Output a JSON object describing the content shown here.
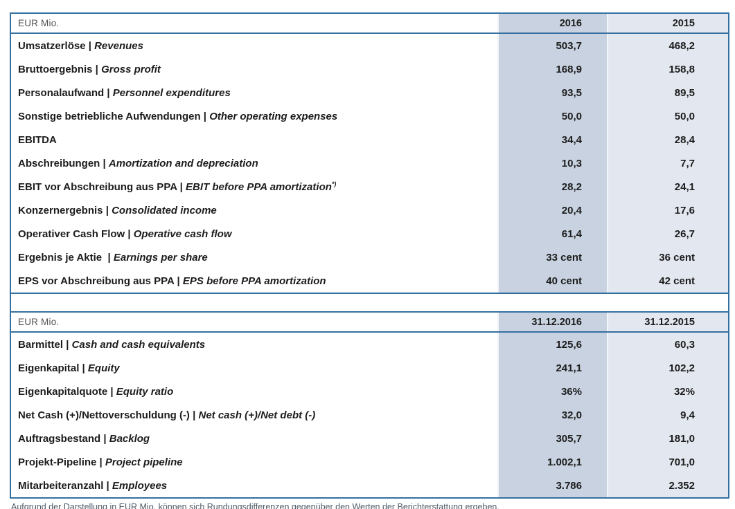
{
  "colors": {
    "table_border": "#35709f",
    "col_current_bg": "#c8d2e0",
    "col_prior_bg": "#e3e7f0",
    "text_dark": "#1c1c1c",
    "header_text_gray": "#525252"
  },
  "table1": {
    "header": {
      "label": "EUR Mio.",
      "col1": "2016",
      "col2": "2015"
    },
    "rows": [
      {
        "de": "Umsatzerlöse",
        "en": "Revenues",
        "v1": "503,7",
        "v2": "468,2"
      },
      {
        "de": "Bruttoergebnis",
        "en": "Gross profit",
        "v1": "168,9",
        "v2": "158,8"
      },
      {
        "de": "Personalaufwand",
        "en": "Personnel expenditures",
        "v1": "93,5",
        "v2": "89,5"
      },
      {
        "de": "Sonstige betriebliche Aufwendungen",
        "en": "Other operating expenses",
        "v1": "50,0",
        "v2": "50,0"
      },
      {
        "de": "EBITDA",
        "en": "",
        "v1": "34,4",
        "v2": "28,4"
      },
      {
        "de": "Abschreibungen",
        "en": "Amortization and depreciation",
        "v1": "10,3",
        "v2": "7,7"
      },
      {
        "de": "EBIT vor Abschreibung aus PPA",
        "en": "EBIT before PPA amortization",
        "sup": "*)",
        "v1": "28,2",
        "v2": "24,1"
      },
      {
        "de": "Konzernergebnis",
        "en": "Consolidated income",
        "v1": "20,4",
        "v2": "17,6"
      },
      {
        "de": "Operativer Cash Flow",
        "en": "Operative cash flow",
        "v1": "61,4",
        "v2": "26,7"
      },
      {
        "de": "Ergebnis je Aktie ",
        "en": "Earnings per share",
        "v1": "33 cent",
        "v2": "36 cent"
      },
      {
        "de": "EPS vor Abschreibung aus PPA",
        "en": "EPS before PPA amortization",
        "v1": "40 cent",
        "v2": "42 cent"
      }
    ]
  },
  "table2": {
    "header": {
      "label": "EUR Mio.",
      "col1": "31.12.2016",
      "col2": "31.12.2015"
    },
    "rows": [
      {
        "de": "Barmittel",
        "en": "Cash and cash equivalents",
        "v1": "125,6",
        "v2": "60,3"
      },
      {
        "de": "Eigenkapital",
        "en": "Equity",
        "v1": "241,1",
        "v2": "102,2"
      },
      {
        "de": "Eigenkapitalquote",
        "en": "Equity ratio",
        "v1": "36%",
        "v2": "32%"
      },
      {
        "de": "Net Cash (+)/Nettoverschuldung (-)",
        "en": "Net cash (+)/Net debt (-)",
        "v1": "32,0",
        "v2": "9,4"
      },
      {
        "de": "Auftragsbestand",
        "en": "Backlog",
        "v1": "305,7",
        "v2": "181,0"
      },
      {
        "de": "Projekt-Pipeline",
        "en": "Project pipeline",
        "v1": "1.002,1",
        "v2": "701,0"
      },
      {
        "de": "Mitarbeiteranzahl",
        "en": "Employees",
        "v1": "3.786",
        "v2": "2.352"
      }
    ]
  },
  "separator": "|",
  "footnote": "Aufgrund der Darstellung in EUR Mio. können sich Rundungsdifferenzen gegenüber den Werten der Berichterstattung ergeben."
}
